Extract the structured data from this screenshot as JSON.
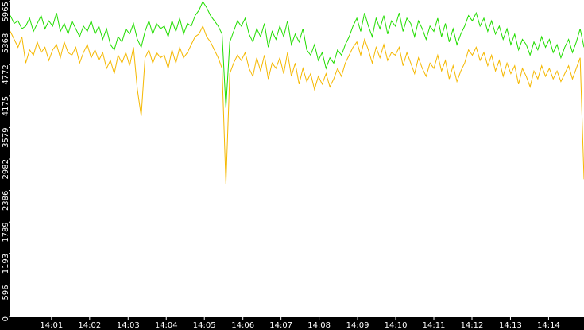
{
  "chart_data": {
    "type": "line",
    "xlim": [
      0,
      149
    ],
    "xticks": [
      {
        "value": 10.7,
        "label": "14:01"
      },
      {
        "value": 20.6,
        "label": "14:02"
      },
      {
        "value": 30.6,
        "label": "14:03"
      },
      {
        "value": 40.5,
        "label": "14:04"
      },
      {
        "value": 50.4,
        "label": "14:05"
      },
      {
        "value": 60.4,
        "label": "14:06"
      },
      {
        "value": 70.3,
        "label": "14:07"
      },
      {
        "value": 80.2,
        "label": "14:08"
      },
      {
        "value": 90.2,
        "label": "14:09"
      },
      {
        "value": 100.1,
        "label": "14:10"
      },
      {
        "value": 110.0,
        "label": "14:11"
      },
      {
        "value": 119.9,
        "label": "14:12"
      },
      {
        "value": 129.9,
        "label": "14:13"
      },
      {
        "value": 139.8,
        "label": "14:14"
      }
    ],
    "ylim": [
      0,
      5965
    ],
    "yticks": [
      0,
      596,
      1193,
      1789,
      2386,
      2982,
      3579,
      4175,
      4772,
      5368,
      5965
    ],
    "series": [
      {
        "color": "#22dd00",
        "values": [
          5700,
          5550,
          5600,
          5450,
          5500,
          5650,
          5400,
          5550,
          5700,
          5450,
          5600,
          5500,
          5750,
          5400,
          5550,
          5350,
          5600,
          5450,
          5300,
          5500,
          5400,
          5600,
          5350,
          5500,
          5250,
          5450,
          5150,
          5050,
          5300,
          5200,
          5450,
          5350,
          5550,
          5250,
          5100,
          5400,
          5600,
          5350,
          5550,
          5450,
          5500,
          5300,
          5600,
          5400,
          5650,
          5350,
          5550,
          5500,
          5700,
          5800,
          5965,
          5850,
          5700,
          5600,
          5500,
          5350,
          3950,
          5200,
          5400,
          5600,
          5500,
          5650,
          5350,
          5200,
          5450,
          5300,
          5550,
          5100,
          5400,
          5250,
          5500,
          5300,
          5600,
          5150,
          5350,
          5200,
          5450,
          5050,
          4950,
          5150,
          4850,
          5000,
          4700,
          4900,
          4800,
          5050,
          4950,
          5150,
          5300,
          5500,
          5650,
          5400,
          5750,
          5500,
          5300,
          5650,
          5450,
          5700,
          5350,
          5600,
          5500,
          5750,
          5400,
          5650,
          5550,
          5300,
          5600,
          5450,
          5250,
          5500,
          5400,
          5650,
          5300,
          5550,
          5200,
          5450,
          5150,
          5350,
          5500,
          5700,
          5600,
          5750,
          5500,
          5650,
          5400,
          5600,
          5350,
          5500,
          5250,
          5450,
          5150,
          5350,
          5050,
          5250,
          5150,
          4950,
          5200,
          5050,
          5300,
          5100,
          5250,
          5000,
          5150,
          4900,
          5100,
          5250,
          5000,
          5200,
          5450,
          5100
        ]
      },
      {
        "color": "#f5b800",
        "values": [
          5400,
          5250,
          5100,
          5300,
          4800,
          5050,
          4950,
          5200,
          5000,
          5100,
          4850,
          5050,
          5150,
          4900,
          5200,
          5000,
          4950,
          5100,
          4800,
          5000,
          5150,
          4900,
          5050,
          4850,
          5000,
          4700,
          4850,
          4600,
          4950,
          4800,
          5000,
          4750,
          5100,
          4300,
          3800,
          4900,
          5050,
          4800,
          5000,
          4900,
          4950,
          4700,
          5050,
          4800,
          5100,
          4900,
          5000,
          5150,
          5300,
          5350,
          5500,
          5300,
          5200,
          5050,
          4900,
          4700,
          2500,
          4600,
          4800,
          4950,
          4850,
          5000,
          4700,
          4550,
          4900,
          4650,
          4950,
          4500,
          4800,
          4700,
          4900,
          4600,
          5000,
          4550,
          4800,
          4400,
          4700,
          4450,
          4600,
          4300,
          4550,
          4400,
          4600,
          4350,
          4500,
          4700,
          4550,
          4800,
          4950,
          5100,
          5200,
          4950,
          5250,
          5050,
          4800,
          5100,
          4900,
          5150,
          4850,
          5000,
          4950,
          5100,
          4750,
          5000,
          4800,
          4600,
          4900,
          4700,
          4550,
          4800,
          4700,
          4950,
          4650,
          4850,
          4500,
          4750,
          4450,
          4650,
          4800,
          5050,
          4950,
          5100,
          4850,
          5000,
          4750,
          4950,
          4650,
          4850,
          4550,
          4800,
          4600,
          4750,
          4400,
          4700,
          4550,
          4350,
          4650,
          4500,
          4750,
          4550,
          4700,
          4500,
          4650,
          4450,
          4600,
          4750,
          4500,
          4700,
          4900,
          2600
        ]
      }
    ]
  }
}
